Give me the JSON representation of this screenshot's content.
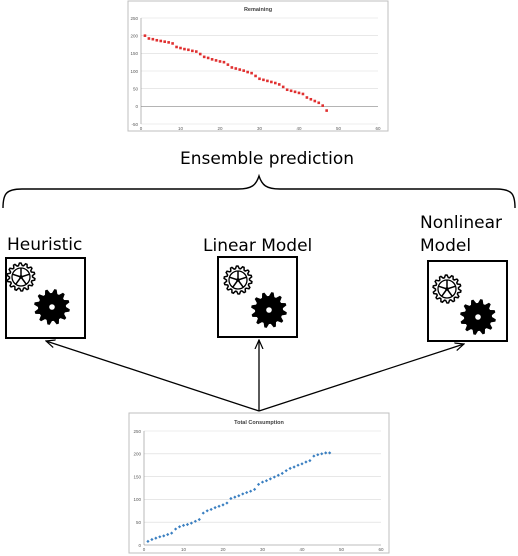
{
  "ensemble_label": "Ensemble prediction",
  "models": [
    {
      "label": "Heuristic",
      "icon": "gears-icon"
    },
    {
      "label": "Linear Model",
      "icon": "gears-icon"
    },
    {
      "label_line1": "Nonlinear",
      "label_line2": "Model",
      "icon": "gears-icon"
    }
  ],
  "chart_data": [
    {
      "type": "scatter",
      "title": "Remaining",
      "color": "#e03030",
      "xlim": [
        0,
        60
      ],
      "ylim": [
        -50,
        250
      ],
      "xticks": [
        0,
        10,
        20,
        30,
        40,
        50,
        60
      ],
      "yticks": [
        -50,
        0,
        50,
        100,
        150,
        200,
        250
      ],
      "xticklabels": [
        "0",
        "10",
        "20",
        "30",
        "40",
        "50",
        "60"
      ],
      "yticklabels": [
        "-50",
        "0",
        "50",
        "100",
        "150",
        "200",
        "250"
      ],
      "x": [
        1,
        2,
        3,
        4,
        5,
        6,
        7,
        8,
        9,
        10,
        11,
        12,
        13,
        14,
        15,
        16,
        17,
        18,
        19,
        20,
        21,
        22,
        23,
        24,
        25,
        26,
        27,
        28,
        29,
        30,
        31,
        32,
        33,
        34,
        35,
        36,
        37,
        38,
        39,
        40,
        41,
        42,
        43,
        44,
        45,
        46,
        47
      ],
      "y": [
        200,
        192,
        190,
        187,
        185,
        183,
        181,
        178,
        168,
        165,
        162,
        160,
        157,
        155,
        148,
        140,
        137,
        133,
        130,
        127,
        125,
        118,
        110,
        107,
        104,
        101,
        97,
        94,
        86,
        78,
        75,
        72,
        69,
        66,
        62,
        55,
        47,
        44,
        41,
        38,
        35,
        25,
        20,
        15,
        10,
        2,
        -12
      ]
    },
    {
      "type": "scatter",
      "title": "Total Consumption",
      "color": "#3a7fc1",
      "xlim": [
        0,
        60
      ],
      "ylim": [
        0,
        250
      ],
      "xticks": [
        0,
        10,
        20,
        30,
        40,
        50,
        60
      ],
      "yticks": [
        0,
        50,
        100,
        150,
        200,
        250
      ],
      "xticklabels": [
        "0",
        "10",
        "20",
        "30",
        "40",
        "50",
        "60"
      ],
      "yticklabels": [
        "0",
        "50",
        "100",
        "150",
        "200",
        "250"
      ],
      "x": [
        1,
        2,
        3,
        4,
        5,
        6,
        7,
        8,
        9,
        10,
        11,
        12,
        13,
        14,
        15,
        16,
        17,
        18,
        19,
        20,
        21,
        22,
        23,
        24,
        25,
        26,
        27,
        28,
        29,
        30,
        31,
        32,
        33,
        34,
        35,
        36,
        37,
        38,
        39,
        40,
        41,
        42,
        43,
        44,
        45,
        46,
        47
      ],
      "y": [
        8,
        12,
        15,
        18,
        20,
        23,
        26,
        35,
        40,
        43,
        45,
        48,
        52,
        56,
        70,
        75,
        78,
        82,
        85,
        88,
        92,
        102,
        105,
        108,
        112,
        115,
        118,
        122,
        133,
        138,
        141,
        145,
        149,
        153,
        157,
        163,
        168,
        171,
        175,
        178,
        182,
        185,
        195,
        198,
        200,
        202,
        202
      ]
    }
  ]
}
